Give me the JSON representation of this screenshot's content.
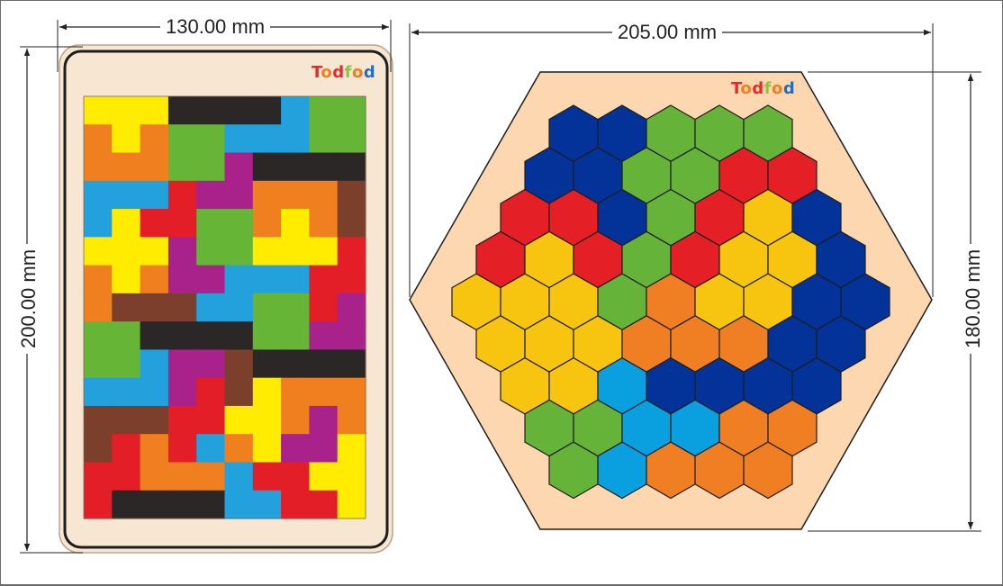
{
  "dimensions": {
    "rect_width": "130.00 mm",
    "rect_height": "200.00 mm",
    "hex_width": "205.00 mm",
    "hex_height": "180.00 mm"
  },
  "brand": {
    "name": "Todfod",
    "letters": [
      {
        "ch": "T",
        "color": "#e8262b"
      },
      {
        "ch": "o",
        "color": "#f07e1c"
      },
      {
        "ch": "d",
        "color": "#e8262b"
      },
      {
        "ch": "f",
        "color": "#8cc63f"
      },
      {
        "ch": "o",
        "color": "#f07e1c"
      },
      {
        "ch": "d",
        "color": "#1e6fc0"
      }
    ]
  },
  "colors": {
    "Y": "#ffec00",
    "K": "#2b2727",
    "B": "#22a1dc",
    "G": "#67b536",
    "O": "#f07f1f",
    "P": "#a9218a",
    "R": "#e31e26",
    "N": "#7b3f2b",
    "wood": "#f6e6d2",
    "hex_board": "#fdd7b0",
    "hY": "#f7c40f",
    "hK": "#033399",
    "hB": "#0aa0e0",
    "hG": "#66b33a",
    "hO": "#ef7f22",
    "hR": "#e41f26"
  },
  "pentomino_board": {
    "cols": 10,
    "rows": 15,
    "grid": [
      "YYYKKKKBGG",
      "OYOGGBBBGG",
      "OOOGGPKKKK",
      "BBBRPPOOON",
      "BYRRGGOYON",
      "YYYPGGYYYR",
      "OYOPPBBBRR",
      "ONNNBBGGRP",
      "GGKKKKGGPP",
      "GGBPPNKKKK",
      "BBBPRNYOOO",
      "NNNRRYYOPO",
      "NRORBOYPPY",
      "RROOOBRRYY",
      "RKKKKBBRRY"
    ]
  },
  "hex_board": {
    "rows": [
      {
        "offset": 2,
        "cells": [
          "K",
          "K",
          "G",
          "G",
          "G"
        ]
      },
      {
        "offset": 1.5,
        "cells": [
          "K",
          "K",
          "G",
          "G",
          "R",
          "R"
        ]
      },
      {
        "offset": 1,
        "cells": [
          "R",
          "R",
          "K",
          "G",
          "R",
          "Y",
          "K"
        ]
      },
      {
        "offset": 0.5,
        "cells": [
          "R",
          "Y",
          "R",
          "G",
          "R",
          "Y",
          "Y",
          "K"
        ]
      },
      {
        "offset": 0,
        "cells": [
          "Y",
          "Y",
          "Y",
          "G",
          "O",
          "Y",
          "Y",
          "K",
          "K"
        ]
      },
      {
        "offset": 0.5,
        "cells": [
          "Y",
          "Y",
          "Y",
          "O",
          "O",
          "O",
          "K",
          "K"
        ]
      },
      {
        "offset": 1,
        "cells": [
          "Y",
          "Y",
          "B",
          "K",
          "K",
          "K",
          "K"
        ]
      },
      {
        "offset": 1.5,
        "cells": [
          "G",
          "G",
          "B",
          "B",
          "O",
          "O"
        ]
      },
      {
        "offset": 2,
        "cells": [
          "G",
          "B",
          "O",
          "O",
          "O"
        ]
      }
    ]
  }
}
